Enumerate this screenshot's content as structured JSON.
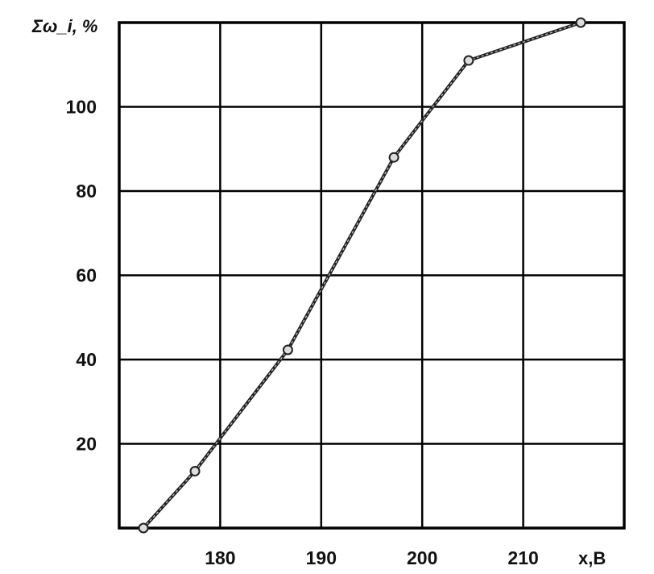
{
  "chart_data": {
    "type": "line",
    "title": "",
    "xlabel": "x,B",
    "ylabel": "Σω_i, %",
    "xlim": [
      170,
      220
    ],
    "ylim": [
      0,
      120
    ],
    "grid": true,
    "x_ticks": [
      180,
      190,
      200,
      210
    ],
    "y_ticks": [
      20,
      40,
      60,
      80,
      100
    ],
    "series": [
      {
        "x": [
          172.4,
          177.5,
          186.7,
          197.2,
          204.6,
          215.7
        ],
        "y": [
          0,
          13.5,
          42.3,
          88,
          111,
          120
        ]
      }
    ],
    "colors": {
      "line": "#222222",
      "grid": "#000000"
    }
  }
}
